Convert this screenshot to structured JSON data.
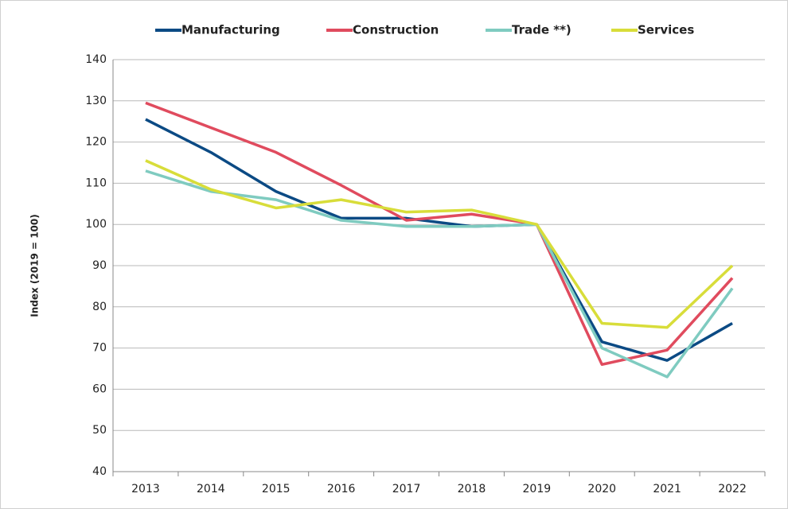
{
  "chart_data": {
    "type": "line",
    "ylabel": "Index (2019 = 100)",
    "categories": [
      "2013",
      "2014",
      "2015",
      "2016",
      "2017",
      "2018",
      "2019",
      "2020",
      "2021",
      "2022"
    ],
    "series": [
      {
        "name": "Manufacturing",
        "color": "#0b4a84",
        "values": [
          125.5,
          117.5,
          108,
          101.5,
          101.5,
          99.5,
          100,
          71.5,
          67,
          76
        ]
      },
      {
        "name": "Construction",
        "color": "#e04b5e",
        "values": [
          129.5,
          123.5,
          117.5,
          109.5,
          101,
          102.5,
          100,
          66,
          69.5,
          87
        ]
      },
      {
        "name": "Trade **)",
        "color": "#7fcbc0",
        "values": [
          113,
          108,
          106,
          101,
          99.5,
          99.5,
          100,
          70,
          63,
          84.5
        ]
      },
      {
        "name": "Services",
        "color": "#d8dd3a",
        "values": [
          115.5,
          108.5,
          104,
          106,
          103,
          103.5,
          100,
          76,
          75,
          90
        ]
      }
    ],
    "ylim": [
      40,
      140
    ],
    "yticks": [
      40,
      50,
      60,
      70,
      80,
      90,
      100,
      110,
      120,
      130,
      140
    ],
    "grid": true
  }
}
